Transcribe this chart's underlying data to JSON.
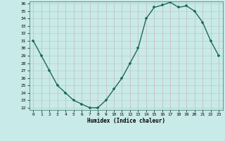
{
  "x": [
    0,
    1,
    2,
    3,
    4,
    5,
    6,
    7,
    8,
    9,
    10,
    11,
    12,
    13,
    14,
    15,
    16,
    17,
    18,
    19,
    20,
    21,
    22,
    23
  ],
  "y": [
    31,
    29,
    27,
    25,
    24,
    23,
    22.5,
    22,
    22,
    23,
    24.5,
    26,
    28,
    30,
    34,
    35.5,
    35.8,
    36.2,
    35.5,
    35.7,
    35,
    33.5,
    31,
    29
  ],
  "ylim": [
    22,
    36
  ],
  "xlim": [
    -0.5,
    23.5
  ],
  "yticks": [
    22,
    23,
    24,
    25,
    26,
    27,
    28,
    29,
    30,
    31,
    32,
    33,
    34,
    35,
    36
  ],
  "xticks": [
    0,
    1,
    2,
    3,
    4,
    5,
    6,
    7,
    8,
    9,
    10,
    11,
    12,
    13,
    14,
    15,
    16,
    17,
    18,
    19,
    20,
    21,
    22,
    23
  ],
  "xlabel": "Humidex (Indice chaleur)",
  "line_color": "#1a6b5a",
  "marker_color": "#1a6b5a",
  "bg_color": "#c8eae8",
  "grid_color_v": "#c8b8b8",
  "grid_color_h": "#b8cece",
  "title": ""
}
